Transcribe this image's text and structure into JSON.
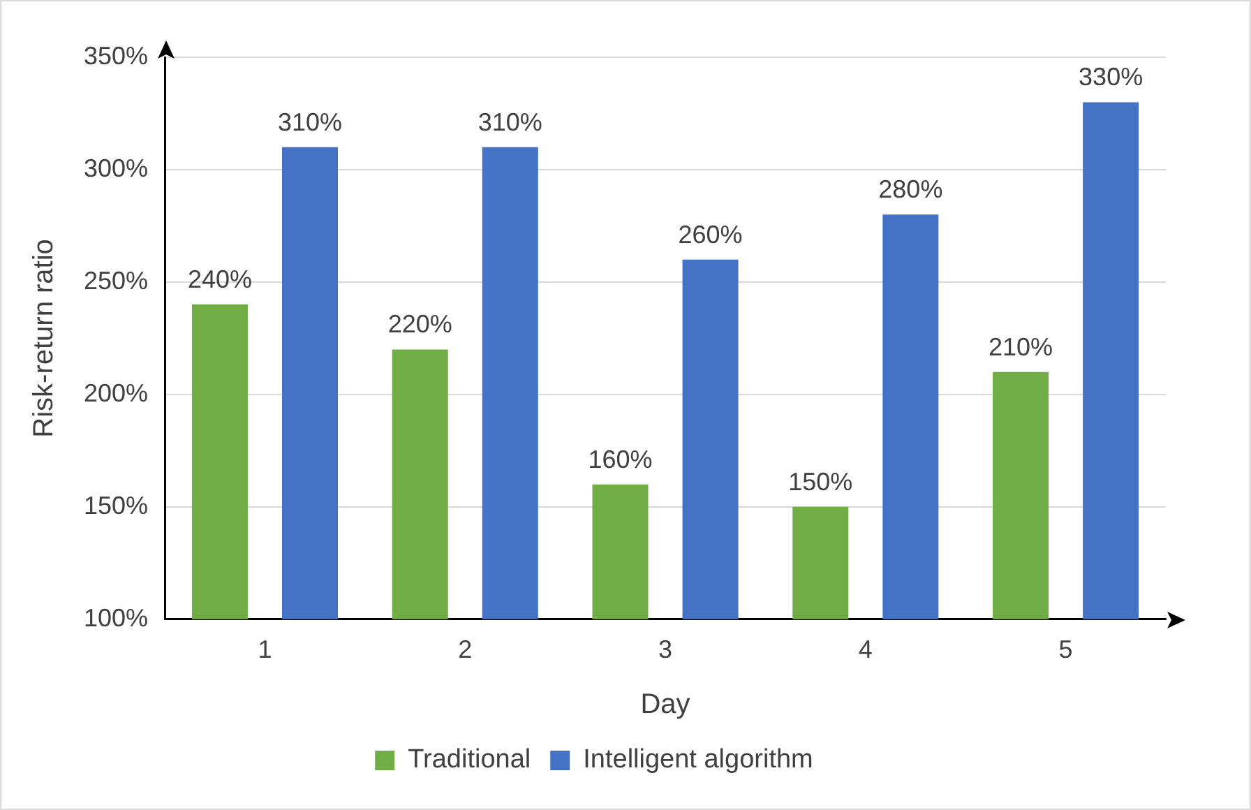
{
  "chart_data": {
    "type": "bar",
    "xlabel": "Day",
    "ylabel": "Risk-return ratio",
    "categories": [
      "1",
      "2",
      "3",
      "4",
      "5"
    ],
    "series": [
      {
        "name": "Traditional",
        "color": "#70ad47",
        "values": [
          240,
          220,
          160,
          150,
          210
        ],
        "value_labels": [
          "240%",
          "220%",
          "160%",
          "150%",
          "210%"
        ]
      },
      {
        "name": "Intelligent algorithm",
        "color": "#4472c4",
        "values": [
          310,
          310,
          260,
          280,
          330
        ],
        "value_labels": [
          "310%",
          "310%",
          "260%",
          "280%",
          "330%"
        ]
      }
    ],
    "ylim": [
      100,
      350
    ],
    "yticks": [
      {
        "value": 100,
        "label": "100%"
      },
      {
        "value": 150,
        "label": "150%"
      },
      {
        "value": 200,
        "label": "200%"
      },
      {
        "value": 250,
        "label": "250%"
      },
      {
        "value": 300,
        "label": "300%"
      },
      {
        "value": 350,
        "label": "350%"
      }
    ],
    "grid": "y",
    "legend": "bottom"
  }
}
